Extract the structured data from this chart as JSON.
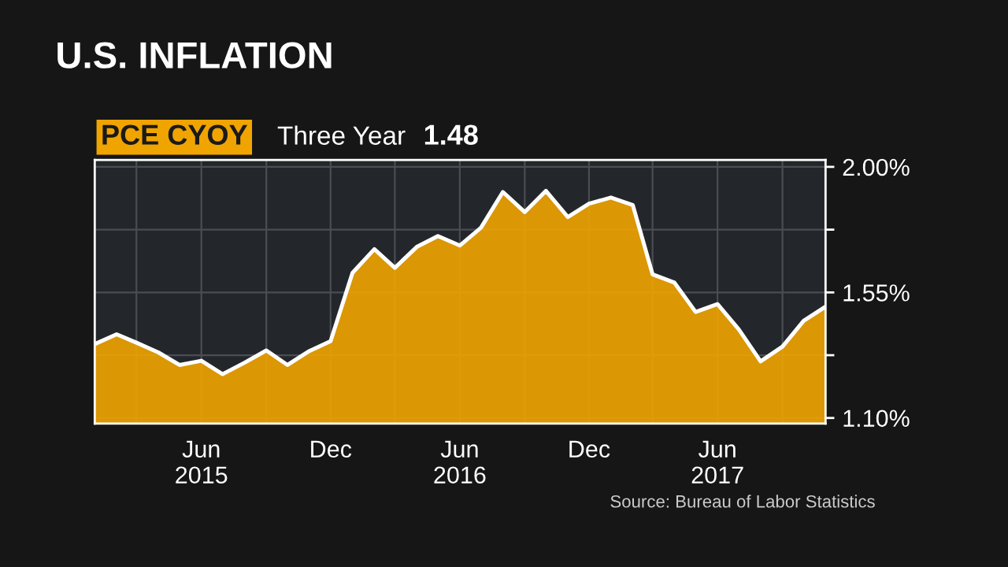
{
  "chart_data": {
    "type": "area",
    "title": "U.S. INFLATION",
    "annotations": [
      "PCE CYOY",
      "Three Year",
      "1.48",
      "Source: Bureau of Labor Statistics"
    ],
    "x": [
      "2015-01",
      "2015-02",
      "2015-03",
      "2015-04",
      "2015-05",
      "2015-06",
      "2015-07",
      "2015-08",
      "2015-09",
      "2015-10",
      "2015-11",
      "2015-12",
      "2016-01",
      "2016-02",
      "2016-03",
      "2016-04",
      "2016-05",
      "2016-06",
      "2016-07",
      "2016-08",
      "2016-09",
      "2016-10",
      "2016-11",
      "2016-12",
      "2017-01",
      "2017-02",
      "2017-03",
      "2017-04",
      "2017-05",
      "2017-06",
      "2017-07",
      "2017-08",
      "2017-09",
      "2017-10",
      "2017-11"
    ],
    "series": [
      {
        "color": "#f0a400",
        "values": [
          1.365,
          1.4,
          1.37,
          1.335,
          1.29,
          1.305,
          1.257,
          1.298,
          1.342,
          1.29,
          1.34,
          1.375,
          1.62,
          1.705,
          1.638,
          1.713,
          1.752,
          1.718,
          1.782,
          1.91,
          1.838,
          1.914,
          1.82,
          1.868,
          1.89,
          1.863,
          1.615,
          1.585,
          1.48,
          1.508,
          1.418,
          1.303,
          1.356,
          1.448,
          1.499
        ]
      }
    ],
    "xlim": [
      "2015-01",
      "2017-11"
    ],
    "xticks": [
      {
        "value": "2015-03",
        "label": null
      },
      {
        "value": "2015-06",
        "label": "Jun\n2015"
      },
      {
        "value": "2015-09",
        "label": null
      },
      {
        "value": "2015-12",
        "label": "Dec"
      },
      {
        "value": "2016-03",
        "label": null
      },
      {
        "value": "2016-06",
        "label": "Jun\n2016"
      },
      {
        "value": "2016-09",
        "label": null
      },
      {
        "value": "2016-12",
        "label": "Dec"
      },
      {
        "value": "2017-03",
        "label": null
      },
      {
        "value": "2017-06",
        "label": "Jun\n2017"
      },
      {
        "value": "2017-09",
        "label": null
      }
    ],
    "ylim": [
      1.08,
      2.025
    ],
    "yticks": [
      {
        "value": 1.1,
        "label": "1.10%"
      },
      {
        "value": 1.325,
        "label": null
      },
      {
        "value": 1.55,
        "label": "1.55%"
      },
      {
        "value": 1.775,
        "label": null
      },
      {
        "value": 2.0,
        "label": "2.00%"
      }
    ],
    "grid": true
  }
}
